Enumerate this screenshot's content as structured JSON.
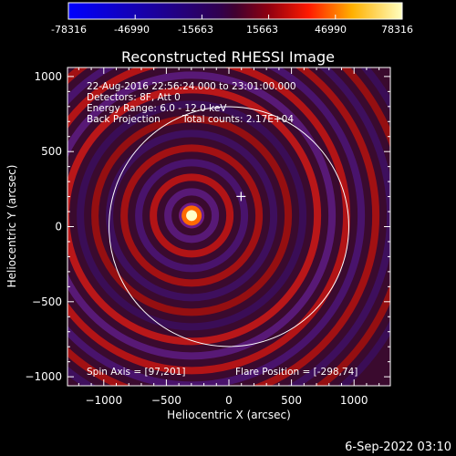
{
  "colorbar": {
    "tick_labels": [
      "-78316",
      "-46990",
      "-15663",
      "15663",
      "46990",
      "78316"
    ],
    "range": [
      -78316,
      78316
    ]
  },
  "image": {
    "title": "Reconstructed RHESSI Image",
    "info_lines": [
      "22-Aug-2016 22:56:24.000 to 23:01:00.000",
      "Detectors: 8F, Att 0",
      "Energy Range: 6.0 - 12.0 keV"
    ],
    "method": "Back Projection",
    "total_counts": "Total counts: 2.17E+04",
    "spin_axis": "Spin Axis = [97,201]",
    "flare_position": "Flare Position = [-298,74]",
    "xlabel": "Heliocentric X (arcsec)",
    "ylabel": "Heliocentric Y (arcsec)",
    "x_tick_labels": [
      "−1000",
      "−500",
      "0",
      "500",
      "1000"
    ],
    "y_tick_labels": [
      "1000",
      "500",
      "0",
      "−500",
      "−1000"
    ],
    "x_ticks": [
      -1000,
      -500,
      0,
      500,
      1000
    ],
    "y_ticks": [
      1000,
      500,
      0,
      -500,
      -1000
    ],
    "xlim": [
      -1290,
      1290
    ],
    "ylim": [
      -1060,
      1060
    ],
    "flare_x": -298,
    "flare_y": 74,
    "spin_x": 97,
    "spin_y": 201,
    "solar_radius": 958
  },
  "footer": {
    "timestamp": "6-Sep-2022 03:10"
  }
}
